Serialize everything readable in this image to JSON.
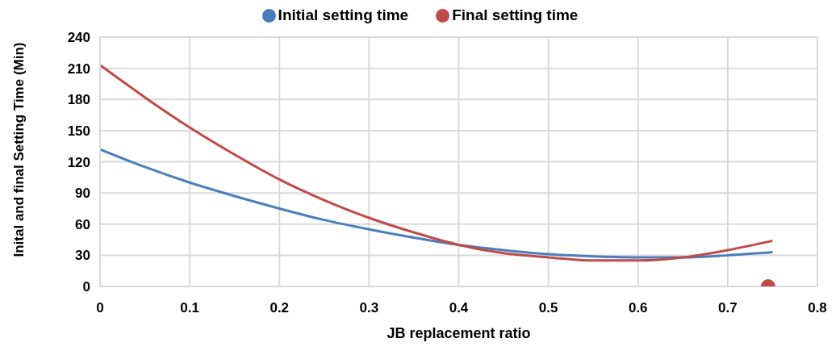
{
  "chart_data": {
    "type": "line",
    "xlabel": "JB replacement ratio",
    "ylabel": "Inital and final Setting Time (Min)",
    "xlim": [
      0,
      0.8
    ],
    "xticks": [
      0,
      0.1,
      0.2,
      0.3,
      0.4,
      0.5,
      0.6,
      0.7,
      0.8
    ],
    "ylim": [
      0,
      240
    ],
    "yticks": [
      0,
      30,
      60,
      90,
      120,
      150,
      180,
      210,
      240
    ],
    "grid": true,
    "legend": "top",
    "marker": "none",
    "line_style": "solid",
    "series": [
      {
        "name": "Initial setting time",
        "color": "#4a7ebb",
        "x": [
          0,
          0.05,
          0.1,
          0.15,
          0.2,
          0.25,
          0.3,
          0.35,
          0.4,
          0.45,
          0.5,
          0.55,
          0.6,
          0.65,
          0.7,
          0.75
        ],
        "values": [
          132,
          115,
          100,
          87,
          75,
          64,
          55,
          47,
          40,
          35,
          31,
          29,
          28,
          28,
          30,
          33
        ]
      },
      {
        "name": "Final setting time",
        "color": "#be4b48",
        "x": [
          0,
          0.05,
          0.1,
          0.15,
          0.2,
          0.25,
          0.3,
          0.35,
          0.4,
          0.45,
          0.5,
          0.55,
          0.6,
          0.65,
          0.7,
          0.75
        ],
        "values": [
          213,
          182,
          153,
          127,
          103,
          83,
          66,
          52,
          40,
          32,
          28,
          25,
          25,
          28,
          35,
          44
        ]
      },
      {
        "type": "scatter",
        "marker": "circle",
        "color": "#be4b48",
        "x": [
          0.745
        ],
        "values": [
          0
        ]
      }
    ]
  }
}
